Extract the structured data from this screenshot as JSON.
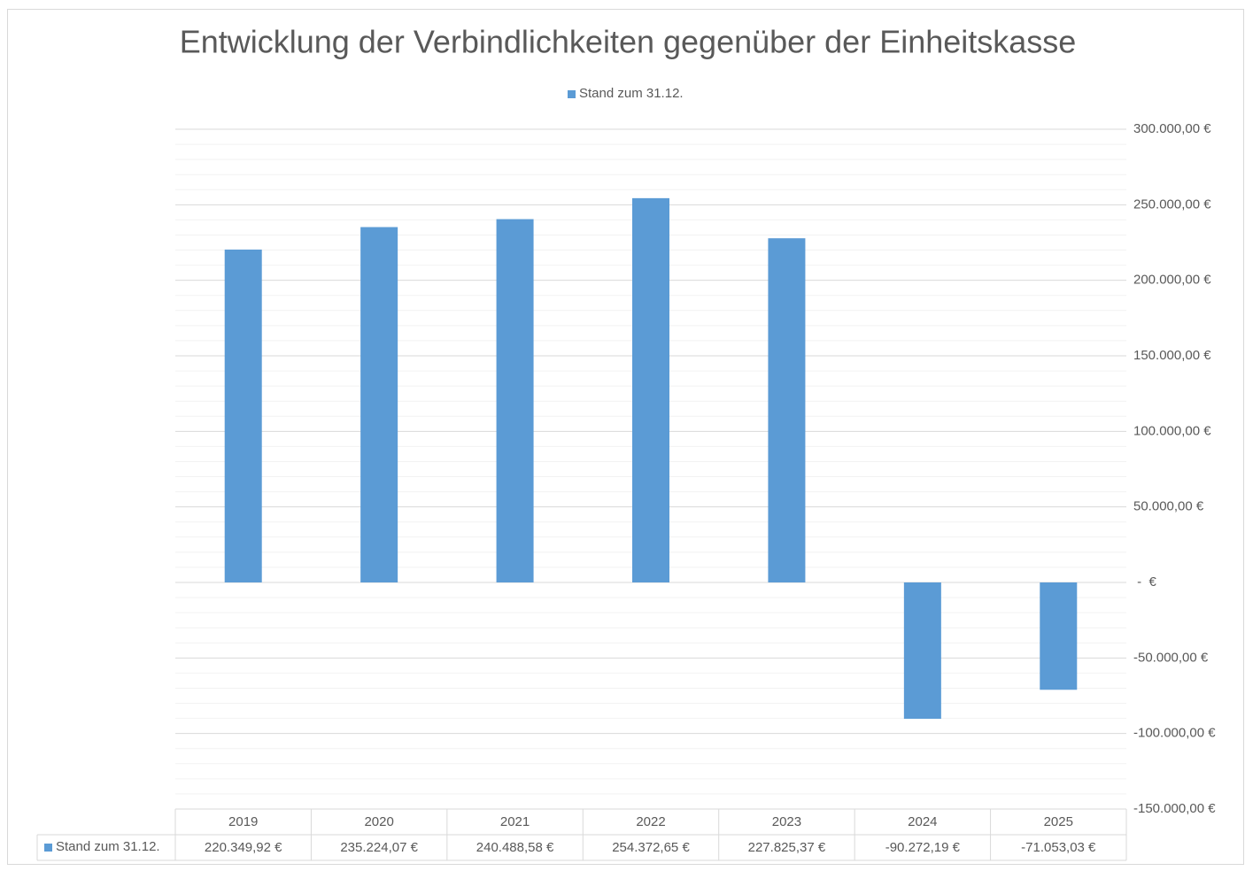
{
  "chart_data": {
    "type": "bar",
    "title": "Entwicklung der Verbindlichkeiten gegenüber der Einheitskasse",
    "categories": [
      "2019",
      "2020",
      "2021",
      "2022",
      "2023",
      "2024",
      "2025"
    ],
    "series": [
      {
        "name": "Stand zum 31.12.",
        "color": "#5b9bd5",
        "values": [
          220349.92,
          235224.07,
          240488.58,
          254372.65,
          227825.37,
          -90272.19,
          -71053.03
        ],
        "value_labels": [
          "220.349,92 €",
          "235.224,07 €",
          "240.488,58 €",
          "254.372,65 €",
          "227.825,37 €",
          "-90.272,19 €",
          "-71.053,03 €"
        ]
      }
    ],
    "ylim": [
      -150000,
      300000
    ],
    "yticks": [
      {
        "value": 300000,
        "label": "300.000,00 €"
      },
      {
        "value": 250000,
        "label": "250.000,00 €"
      },
      {
        "value": 200000,
        "label": "200.000,00 €"
      },
      {
        "value": 150000,
        "label": "150.000,00 €"
      },
      {
        "value": 100000,
        "label": "100.000,00 €"
      },
      {
        "value": 50000,
        "label": "50.000,00 €"
      },
      {
        "value": 0,
        "label": " -  €"
      },
      {
        "value": -50000,
        "label": "-50.000,00 €"
      },
      {
        "value": -100000,
        "label": "-100.000,00 €"
      },
      {
        "value": -150000,
        "label": "-150.000,00 €"
      }
    ],
    "minor_yticks": [
      290000,
      280000,
      270000,
      260000,
      240000,
      230000,
      220000,
      210000,
      190000,
      180000,
      170000,
      160000,
      140000,
      130000,
      120000,
      110000,
      90000,
      80000,
      70000,
      60000,
      40000,
      30000,
      20000,
      10000,
      -10000,
      -20000,
      -30000,
      -40000,
      -60000,
      -70000,
      -80000,
      -90000,
      -110000,
      -120000,
      -130000,
      -140000
    ],
    "grid": true,
    "legend": "top",
    "data_table": true
  }
}
